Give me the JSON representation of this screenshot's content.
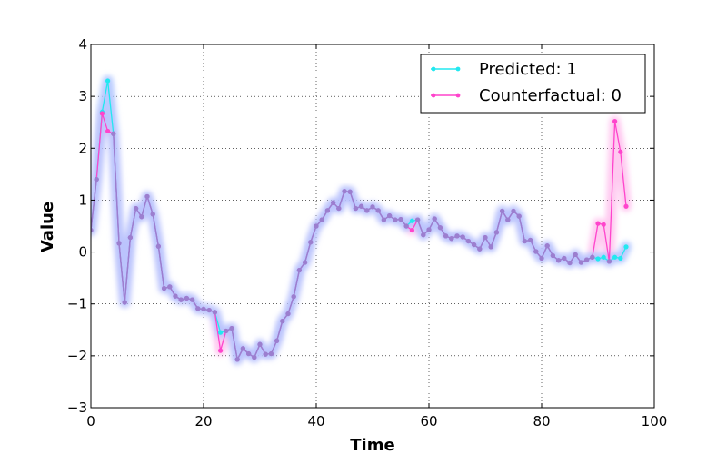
{
  "chart_data": {
    "type": "line",
    "title": "",
    "xlabel": "Time",
    "ylabel": "Value",
    "xlim": [
      0,
      100
    ],
    "ylim": [
      -3,
      4
    ],
    "xticks": [
      "0",
      "20",
      "40",
      "60",
      "80",
      "100"
    ],
    "yticks": [
      "−3",
      "−2",
      "−1",
      "0",
      "1",
      "2",
      "3",
      "4"
    ],
    "grid": true,
    "legend_position": "top-right",
    "colors": {
      "predicted": "#22e8f0",
      "counterfactual": "#ff44cc",
      "shared": "#9b7fcf",
      "glow": "#b8c4ff"
    },
    "series": [
      {
        "name": "Predicted: 1",
        "x": [
          0,
          1,
          2,
          3,
          4,
          5,
          6,
          7,
          8,
          9,
          10,
          11,
          12,
          13,
          14,
          15,
          16,
          17,
          18,
          19,
          20,
          21,
          22,
          23,
          24,
          25,
          26,
          27,
          28,
          29,
          30,
          31,
          32,
          33,
          34,
          35,
          36,
          37,
          38,
          39,
          40,
          41,
          42,
          43,
          44,
          45,
          46,
          47,
          48,
          49,
          50,
          51,
          52,
          53,
          54,
          55,
          56,
          57,
          58,
          59,
          60,
          61,
          62,
          63,
          64,
          65,
          66,
          67,
          68,
          69,
          70,
          71,
          72,
          73,
          74,
          75,
          76,
          77,
          78,
          79,
          80,
          81,
          82,
          83,
          84,
          85,
          86,
          87,
          88,
          89,
          90,
          91,
          92,
          93,
          94,
          95
        ],
        "y": [
          0.42,
          1.4,
          2.7,
          3.3,
          2.28,
          0.17,
          -0.97,
          0.28,
          0.84,
          0.68,
          1.07,
          0.73,
          0.11,
          -0.7,
          -0.67,
          -0.85,
          -0.92,
          -0.89,
          -0.92,
          -1.09,
          -1.1,
          -1.12,
          -1.16,
          -1.55,
          -1.52,
          -1.47,
          -2.07,
          -1.86,
          -1.96,
          -2.03,
          -1.78,
          -1.97,
          -1.96,
          -1.71,
          -1.33,
          -1.19,
          -0.86,
          -0.35,
          -0.2,
          0.19,
          0.5,
          0.62,
          0.8,
          0.95,
          0.84,
          1.17,
          1.16,
          0.84,
          0.88,
          0.8,
          0.87,
          0.8,
          0.62,
          0.7,
          0.62,
          0.63,
          0.5,
          0.6,
          0.62,
          0.33,
          0.43,
          0.64,
          0.47,
          0.31,
          0.26,
          0.31,
          0.29,
          0.21,
          0.14,
          0.06,
          0.28,
          0.1,
          0.38,
          0.79,
          0.62,
          0.79,
          0.69,
          0.21,
          0.23,
          0.01,
          -0.12,
          0.12,
          -0.07,
          -0.16,
          -0.12,
          -0.21,
          -0.05,
          -0.2,
          -0.15,
          -0.1,
          -0.13,
          -0.1,
          -0.18,
          -0.1,
          -0.12,
          0.1
        ]
      },
      {
        "name": "Counterfactual: 0",
        "x": [
          0,
          1,
          2,
          3,
          4,
          5,
          6,
          7,
          8,
          9,
          10,
          11,
          12,
          13,
          14,
          15,
          16,
          17,
          18,
          19,
          20,
          21,
          22,
          23,
          24,
          25,
          26,
          27,
          28,
          29,
          30,
          31,
          32,
          33,
          34,
          35,
          36,
          37,
          38,
          39,
          40,
          41,
          42,
          43,
          44,
          45,
          46,
          47,
          48,
          49,
          50,
          51,
          52,
          53,
          54,
          55,
          56,
          57,
          58,
          59,
          60,
          61,
          62,
          63,
          64,
          65,
          66,
          67,
          68,
          69,
          70,
          71,
          72,
          73,
          74,
          75,
          76,
          77,
          78,
          79,
          80,
          81,
          82,
          83,
          84,
          85,
          86,
          87,
          88,
          89,
          90,
          91,
          92,
          93,
          94,
          95
        ],
        "y": [
          0.42,
          1.4,
          2.67,
          2.33,
          2.28,
          0.17,
          -0.97,
          0.28,
          0.84,
          0.68,
          1.07,
          0.73,
          0.11,
          -0.7,
          -0.67,
          -0.85,
          -0.92,
          -0.89,
          -0.92,
          -1.09,
          -1.1,
          -1.12,
          -1.16,
          -1.9,
          -1.52,
          -1.47,
          -2.07,
          -1.86,
          -1.96,
          -2.03,
          -1.78,
          -1.97,
          -1.96,
          -1.71,
          -1.33,
          -1.19,
          -0.86,
          -0.35,
          -0.2,
          0.19,
          0.5,
          0.62,
          0.8,
          0.95,
          0.84,
          1.17,
          1.16,
          0.84,
          0.88,
          0.8,
          0.87,
          0.8,
          0.62,
          0.7,
          0.62,
          0.63,
          0.5,
          0.42,
          0.62,
          0.33,
          0.43,
          0.64,
          0.47,
          0.31,
          0.26,
          0.31,
          0.29,
          0.21,
          0.14,
          0.06,
          0.28,
          0.1,
          0.38,
          0.79,
          0.62,
          0.79,
          0.69,
          0.21,
          0.23,
          0.01,
          -0.12,
          0.12,
          -0.07,
          -0.16,
          -0.12,
          -0.21,
          -0.05,
          -0.2,
          -0.15,
          -0.1,
          0.55,
          0.53,
          -0.18,
          2.52,
          1.93,
          0.88
        ]
      }
    ]
  }
}
